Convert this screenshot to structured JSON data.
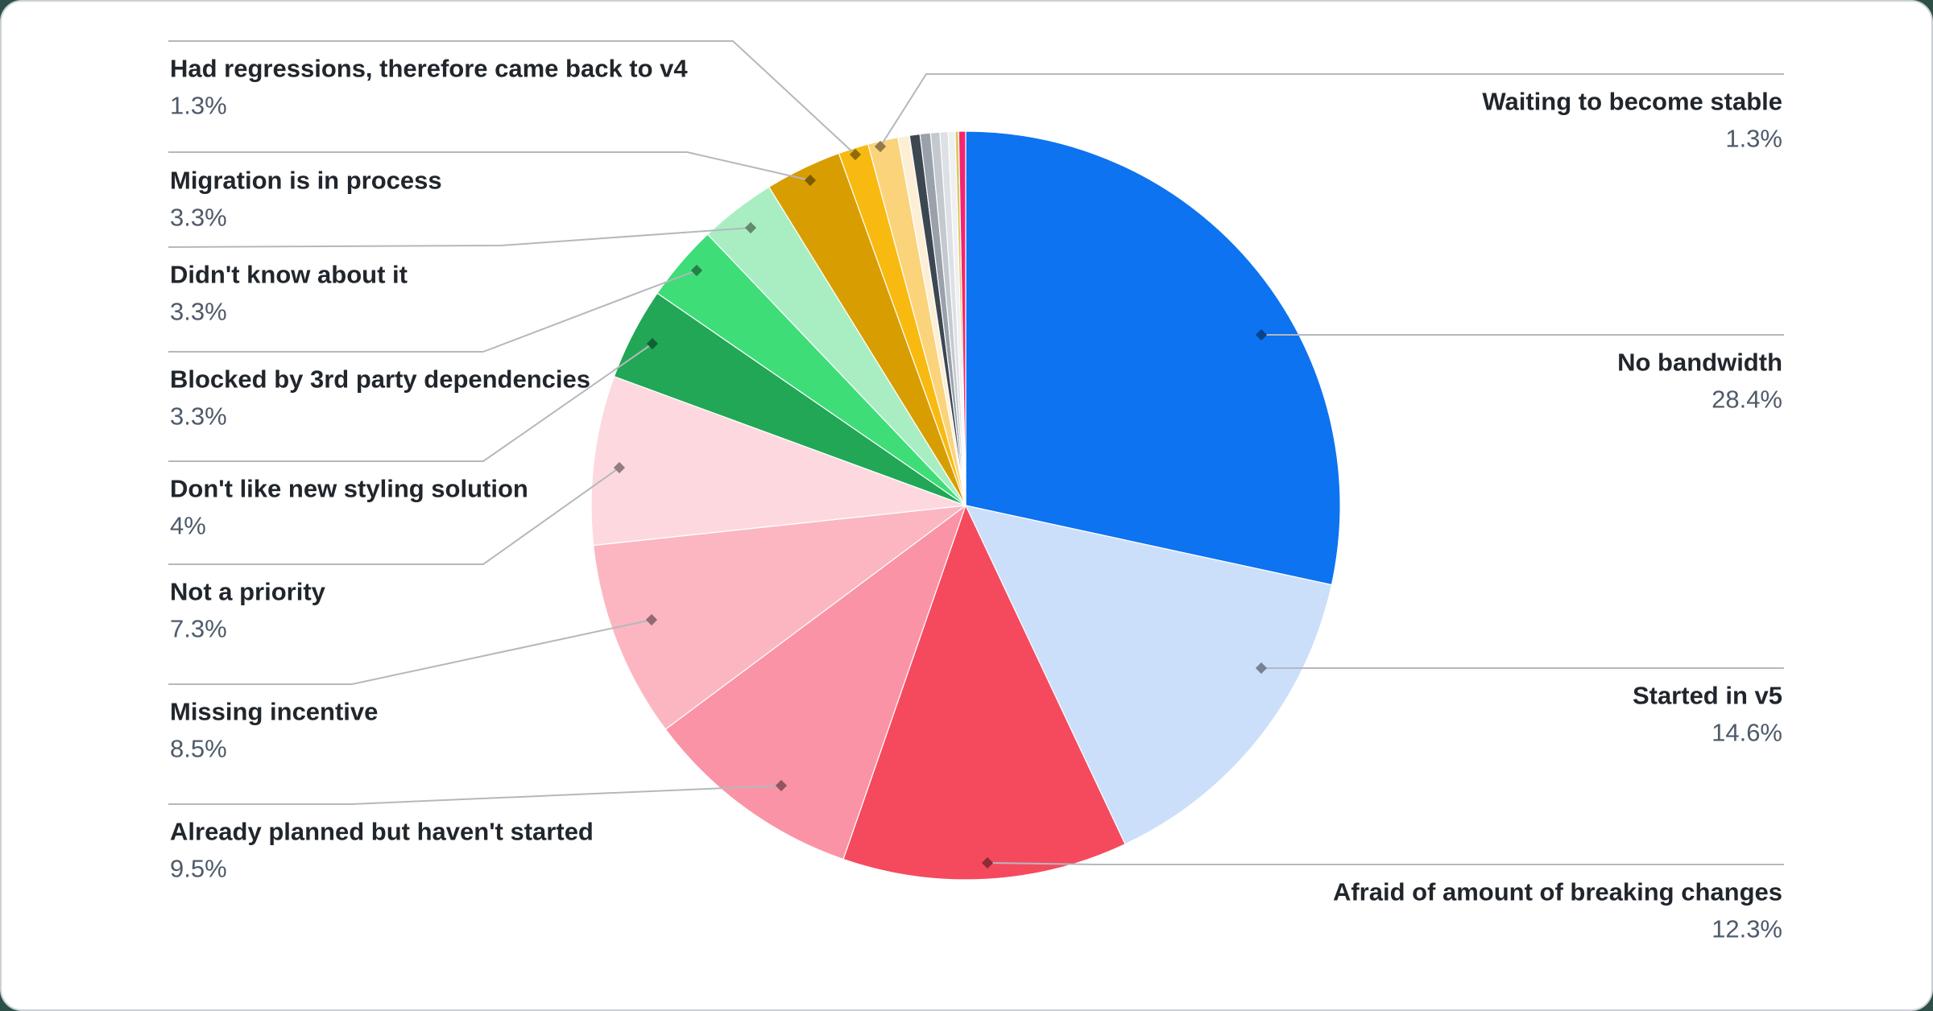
{
  "chart_data": {
    "type": "pie",
    "title": "",
    "unit": "%",
    "legend_position": "none",
    "grid": false,
    "slices": [
      {
        "label": "No bandwidth",
        "value": 28.4,
        "display_value": "28.4%",
        "color": "#0d73f0"
      },
      {
        "label": "Started in v5",
        "value": 14.6,
        "display_value": "14.6%",
        "color": "#cbdffa"
      },
      {
        "label": "Afraid of amount of breaking changes",
        "value": 12.3,
        "display_value": "12.3%",
        "color": "#f54a5e"
      },
      {
        "label": "Already planned but haven't started",
        "value": 9.5,
        "display_value": "9.5%",
        "color": "#fa93a6"
      },
      {
        "label": "Missing incentive",
        "value": 8.5,
        "display_value": "8.5%",
        "color": "#fbb6c2"
      },
      {
        "label": "Not a priority",
        "value": 7.3,
        "display_value": "7.3%",
        "color": "#fdd9df"
      },
      {
        "label": "Don't like new styling solution",
        "value": 4,
        "display_value": "4%",
        "color": "#21a756"
      },
      {
        "label": "Blocked by 3rd party dependencies",
        "value": 3.3,
        "display_value": "3.3%",
        "color": "#3edd78"
      },
      {
        "label": "Didn't know about it",
        "value": 3.3,
        "display_value": "3.3%",
        "color": "#a9eec3"
      },
      {
        "label": "Migration is in process",
        "value": 3.3,
        "display_value": "3.3%",
        "color": "#d89d00"
      },
      {
        "label": "Had regressions, therefore came back to v4",
        "value": 1.3,
        "display_value": "1.3%",
        "color": "#f8ba10"
      },
      {
        "label": "Waiting to become stable",
        "value": 1.3,
        "display_value": "1.3%",
        "color": "#fad37b"
      },
      {
        "label": "",
        "value": 0.5,
        "display_value": "",
        "color": "#fcefd6"
      },
      {
        "label": "",
        "value": 0.45,
        "display_value": "",
        "color": "#3d4752"
      },
      {
        "label": "",
        "value": 0.45,
        "display_value": "",
        "color": "#9aa1ab"
      },
      {
        "label": "",
        "value": 0.4,
        "display_value": "",
        "color": "#c4c9cf"
      },
      {
        "label": "",
        "value": 0.35,
        "display_value": "",
        "color": "#dde0e4"
      },
      {
        "label": "",
        "value": 0.3,
        "display_value": "",
        "color": "#eff0f2"
      },
      {
        "label": "",
        "value": 0.15,
        "display_value": "",
        "color": "#d8cb67"
      },
      {
        "label": "",
        "value": 0.3,
        "display_value": "",
        "color": "#f5246f"
      }
    ],
    "colors": {
      "title_text": "#21262c",
      "value_text": "#4f5b6b",
      "connector": "#b4b8bd",
      "card_border": "#cbd0d5",
      "card_bg": "#ffffff"
    }
  }
}
